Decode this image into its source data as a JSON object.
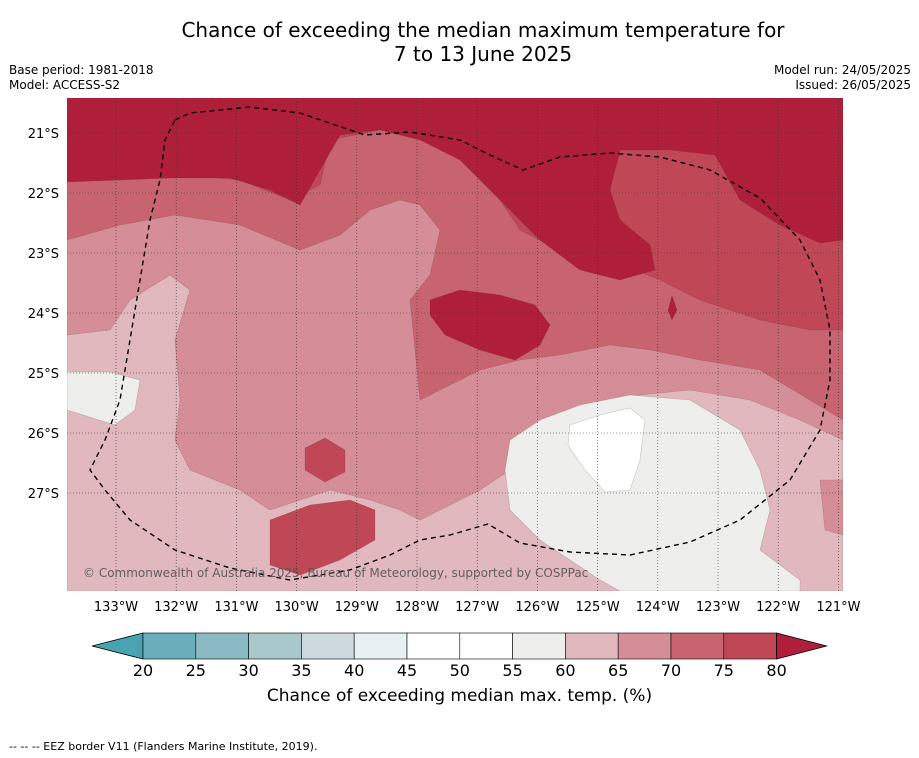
{
  "title_line1": "Chance of exceeding the median maximum temperature for",
  "title_line2": "7 to 13 June 2025",
  "base_period": "Base period: 1981-2018",
  "model": "Model: ACCESS-S2",
  "model_run": "Model run: 24/05/2025",
  "issued": "Issued: 26/05/2025",
  "copyright": "© Commonwealth of Australia 2025, Bureau of Meteorology, supported by COSPPac",
  "footnote": "--  --  -- EEZ border V11 (Flanders Marine Institute, 2019).",
  "lat_labels": [
    "21°S",
    "22°S",
    "23°S",
    "24°S",
    "25°S",
    "26°S",
    "27°S"
  ],
  "lon_labels": [
    "133°W",
    "132°W",
    "131°W",
    "130°W",
    "129°W",
    "128°W",
    "127°W",
    "126°W",
    "125°W",
    "124°W",
    "123°W",
    "122°W",
    "121°W"
  ],
  "colorbar": {
    "label": "Chance of exceeding median max. temp. (%)",
    "ticks": [
      "20",
      "25",
      "30",
      "35",
      "40",
      "45",
      "50",
      "55",
      "60",
      "65",
      "70",
      "75",
      "80"
    ],
    "colors": [
      "#6aaebc",
      "#8cbac4",
      "#a8c8cc",
      "#cdd9dd",
      "#e9f0f3",
      "#ffffff",
      "#ffffff",
      "#eeeeec",
      "#e0b8bd",
      "#d58e97",
      "#c8646f",
      "#bf4756"
    ],
    "under_color": "#4aa3b3",
    "over_color": "#b01f3a"
  },
  "level_colors": {
    "p55": "#eeeeec",
    "p60": "#e0b8bd",
    "p65": "#d58e97",
    "p70": "#c8646f",
    "p75": "#bf4756",
    "p80": "#b01f3a",
    "p45": "#ffffff"
  }
}
